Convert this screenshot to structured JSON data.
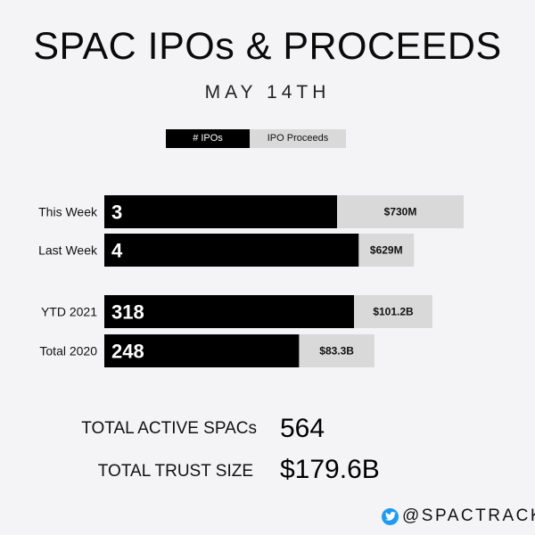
{
  "title": "SPAC IPOs & PROCEEDS",
  "subtitle": "MAY 14TH",
  "legend": {
    "ipos": "# IPOs",
    "proceeds": "IPO Proceeds",
    "colors": {
      "ipos": "#000000",
      "proceeds": "#d9d9d9"
    }
  },
  "chart_data": {
    "type": "bar",
    "orientation": "horizontal",
    "groups": [
      [
        "This Week",
        "Last Week"
      ],
      [
        "YTD 2021",
        "Total 2020"
      ]
    ],
    "categories": [
      "This Week",
      "Last Week",
      "YTD 2021",
      "Total 2020"
    ],
    "series": [
      {
        "name": "# IPOs",
        "values": [
          3,
          4,
          318,
          248
        ],
        "labels": [
          "3",
          "4",
          "318",
          "248"
        ]
      },
      {
        "name": "IPO Proceeds",
        "values": [
          730,
          629,
          101200,
          83300
        ],
        "labels": [
          "$730M",
          "$629M",
          "$101.2B",
          "$83.3B"
        ],
        "units": "$M"
      }
    ],
    "legend_placement": "top"
  },
  "stats": {
    "active_label": "TOTAL ACTIVE SPACs",
    "active_value": "564",
    "trust_label": "TOTAL TRUST SIZE",
    "trust_value": "$179.6B"
  },
  "footer": {
    "icon": "twitter-icon",
    "handle": "@SPACTRACK",
    "icon_color": "#1d9bf0"
  }
}
